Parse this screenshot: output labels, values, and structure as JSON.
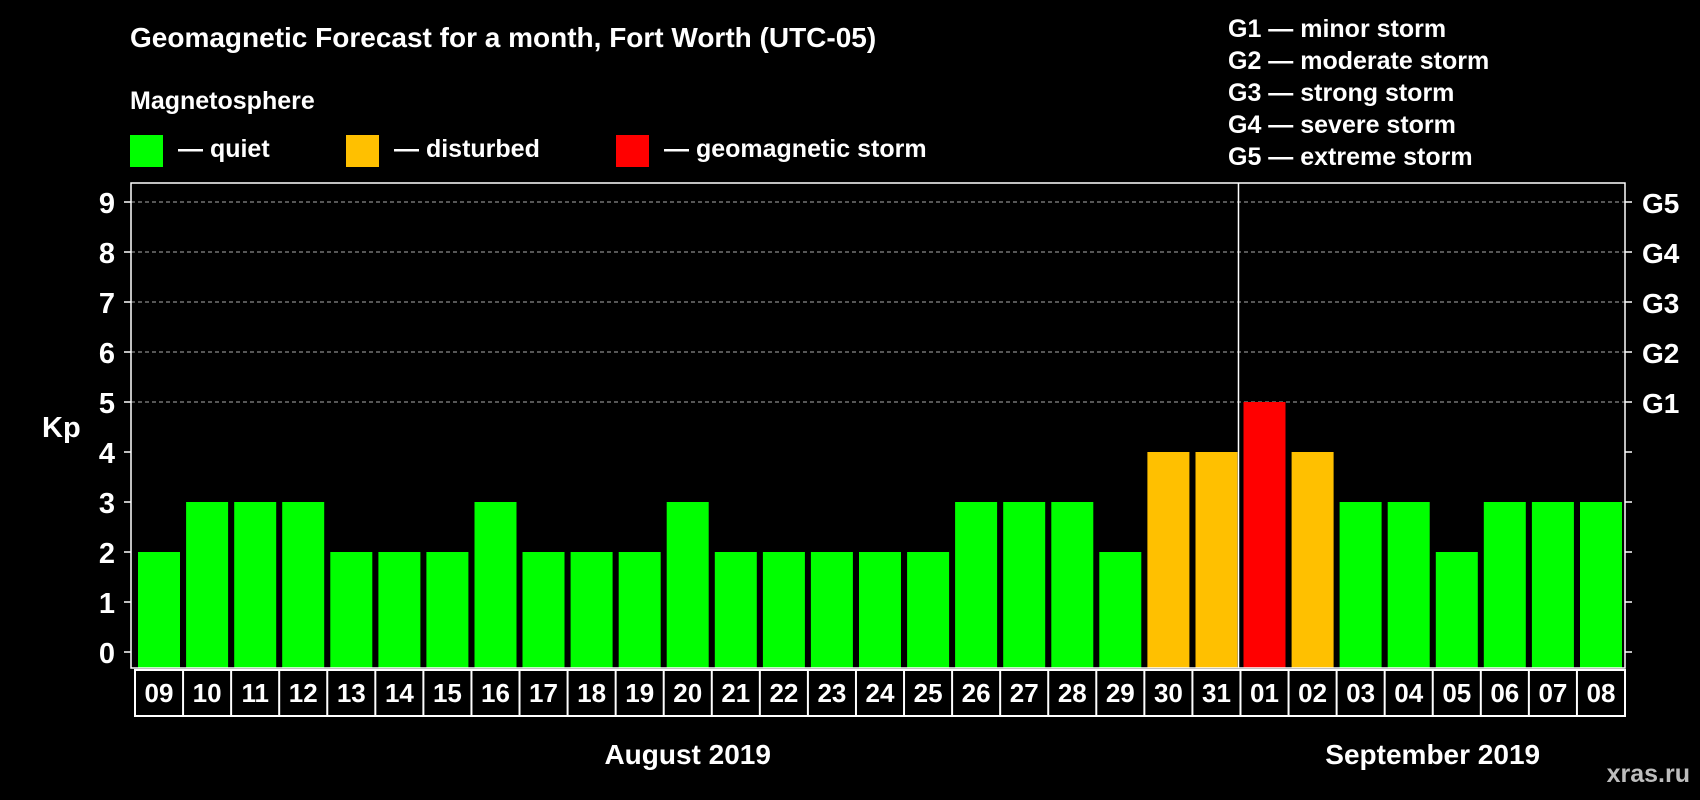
{
  "chart_data": {
    "type": "bar",
    "title": "Geomagnetic Forecast for a month, Fort Worth (UTC-05)",
    "legend_title": "Magnetosphere",
    "legend": [
      {
        "label": "— quiet",
        "color": "#00ff00"
      },
      {
        "label": "— disturbed",
        "color": "#ffc000"
      },
      {
        "label": "— geomagnetic storm",
        "color": "#ff0000"
      }
    ],
    "storm_scale": [
      "G1 — minor storm",
      "G2 — moderate storm",
      "G3 — strong storm",
      "G4 — severe storm",
      "G5 — extreme storm"
    ],
    "ylabel": "Kp",
    "ylim": [
      0,
      9
    ],
    "yticks": [
      "0",
      "1",
      "2",
      "3",
      "4",
      "5",
      "6",
      "7",
      "8",
      "9"
    ],
    "right_axis_labels": [
      {
        "kp": 5,
        "label": "G1"
      },
      {
        "kp": 6,
        "label": "G2"
      },
      {
        "kp": 7,
        "label": "G3"
      },
      {
        "kp": 8,
        "label": "G4"
      },
      {
        "kp": 9,
        "label": "G5"
      }
    ],
    "categories": [
      "09",
      "10",
      "11",
      "12",
      "13",
      "14",
      "15",
      "16",
      "17",
      "18",
      "19",
      "20",
      "21",
      "22",
      "23",
      "24",
      "25",
      "26",
      "27",
      "28",
      "29",
      "30",
      "31",
      "01",
      "02",
      "03",
      "04",
      "05",
      "06",
      "07",
      "08"
    ],
    "values": [
      2,
      3,
      3,
      3,
      2,
      2,
      2,
      3,
      2,
      2,
      2,
      3,
      2,
      2,
      2,
      2,
      2,
      3,
      3,
      3,
      2,
      4,
      4,
      5,
      4,
      3,
      3,
      2,
      3,
      3,
      3
    ],
    "status": [
      "quiet",
      "quiet",
      "quiet",
      "quiet",
      "quiet",
      "quiet",
      "quiet",
      "quiet",
      "quiet",
      "quiet",
      "quiet",
      "quiet",
      "quiet",
      "quiet",
      "quiet",
      "quiet",
      "quiet",
      "quiet",
      "quiet",
      "quiet",
      "quiet",
      "disturbed",
      "disturbed",
      "storm",
      "disturbed",
      "quiet",
      "quiet",
      "quiet",
      "quiet",
      "quiet",
      "quiet"
    ],
    "status_colors": {
      "quiet": "#00ff00",
      "disturbed": "#ffc000",
      "storm": "#ff0000"
    },
    "months": [
      {
        "label": "August 2019",
        "first_index": 0,
        "last_index": 22
      },
      {
        "label": "September 2019",
        "first_index": 23,
        "last_index": 30
      }
    ],
    "watermark": "xras.ru"
  }
}
